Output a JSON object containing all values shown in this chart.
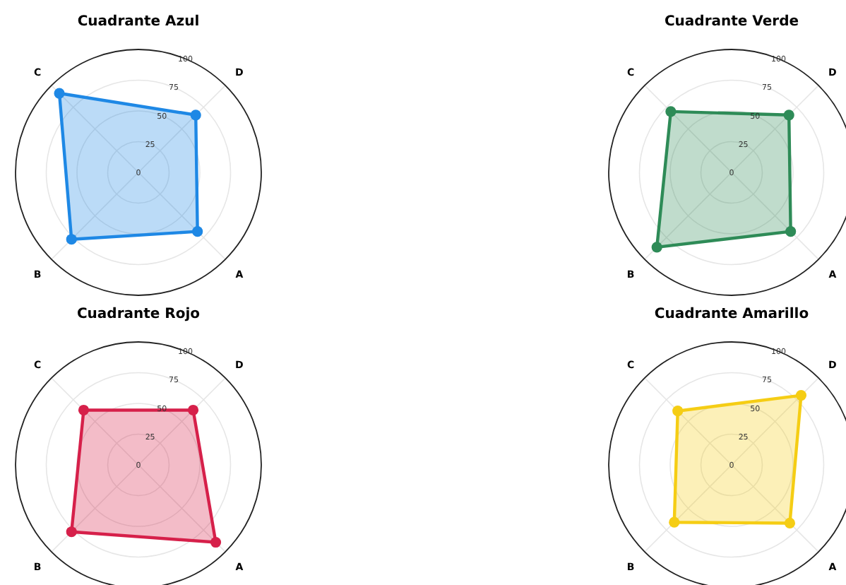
{
  "chart_data": [
    {
      "type": "radar",
      "title": "Cuadrante Azul",
      "categories": [
        "D",
        "A",
        "B",
        "C"
      ],
      "ylim": [
        0,
        100
      ],
      "yticks": [
        0,
        25,
        50,
        75,
        100
      ],
      "grid": true,
      "marker": "circle",
      "series": [
        {
          "color": "#1e88e5",
          "values": [
            66,
            68,
            77,
            91
          ]
        }
      ]
    },
    {
      "type": "radar",
      "title": "Cuadrante Verde",
      "categories": [
        "D",
        "A",
        "B",
        "C"
      ],
      "ylim": [
        0,
        100
      ],
      "yticks": [
        0,
        25,
        50,
        75,
        100
      ],
      "grid": true,
      "marker": "circle",
      "series": [
        {
          "color": "#2e8b57",
          "values": [
            66,
            68,
            86,
            70
          ]
        }
      ]
    },
    {
      "type": "radar",
      "title": "Cuadrante Rojo",
      "categories": [
        "D",
        "A",
        "B",
        "C"
      ],
      "ylim": [
        0,
        100
      ],
      "yticks": [
        0,
        25,
        50,
        75,
        100
      ],
      "grid": true,
      "marker": "circle",
      "series": [
        {
          "color": "#d6204a",
          "values": [
            63,
            89,
            77,
            63
          ]
        }
      ]
    },
    {
      "type": "radar",
      "title": "Cuadrante Amarillo",
      "categories": [
        "D",
        "A",
        "B",
        "C"
      ],
      "ylim": [
        0,
        100
      ],
      "yticks": [
        0,
        25,
        50,
        75,
        100
      ],
      "grid": true,
      "marker": "circle",
      "series": [
        {
          "color": "#f5cd14",
          "values": [
            80,
            67,
            66,
            62
          ]
        }
      ]
    }
  ]
}
